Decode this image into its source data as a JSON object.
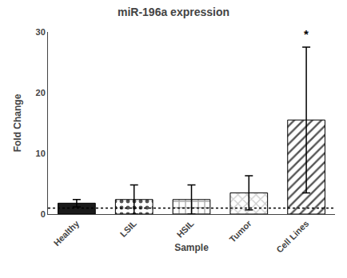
{
  "chart_data": {
    "type": "bar",
    "title": "miR-196a expression",
    "xlabel": "Sample",
    "ylabel": "Fold Change",
    "categories": [
      "Healthy",
      "LSIL",
      "HSIL",
      "Tumor",
      "Cell Lines"
    ],
    "values": [
      1.8,
      2.4,
      2.4,
      3.5,
      15.5
    ],
    "errors": [
      0.6,
      2.4,
      2.4,
      2.8,
      12.0
    ],
    "colors": [
      "#1a1a1a",
      "#555555",
      "#aaaaaa",
      "#cccccc",
      "#555555"
    ],
    "ylim": [
      0,
      30
    ],
    "yticks": [
      0,
      10,
      20,
      30
    ],
    "reference_line": 1.0,
    "annotations": [
      {
        "text": "*",
        "category": "Cell Lines"
      }
    ],
    "grid": false
  }
}
